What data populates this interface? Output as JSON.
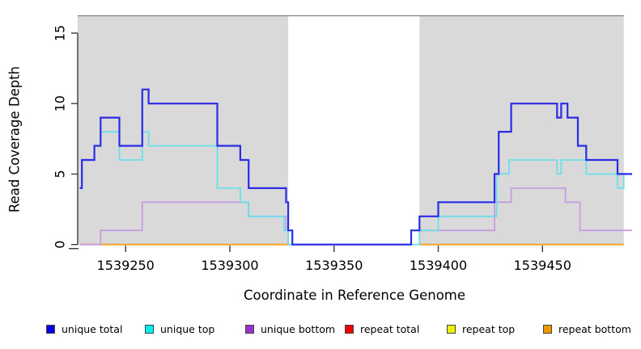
{
  "chart_data": {
    "type": "line",
    "subtype": "step-coverage-plot",
    "title": "",
    "xlabel": "Coordinate in Reference Genome",
    "ylabel": "Read Coverage Depth",
    "xlim": [
      1539227,
      1539493
    ],
    "ylim": [
      0,
      16.2
    ],
    "x_ticks": [
      1539250,
      1539300,
      1539350,
      1539400,
      1539450
    ],
    "y_ticks": [
      0,
      5,
      10,
      15
    ],
    "grid": false,
    "plot_bg_color": "#ffffff",
    "shaded_region_color": "#d9d9d9",
    "shaded_region_border_color": "#808080",
    "shaded_regions": [
      {
        "x_start": 1539227,
        "x_end": 1539328
      },
      {
        "x_start": 1539391,
        "x_end": 1539489
      }
    ],
    "legend_position": "bottom",
    "series": [
      {
        "name": "unique total",
        "line_color": "#2b2be8",
        "legend_color": "#0000ee",
        "line_width": 2.2,
        "segments": [
          {
            "end": 1539493,
            "steps": [
              [
                1539228,
                4
              ],
              [
                1539229,
                6
              ],
              [
                1539235,
                7
              ],
              [
                1539238,
                9
              ],
              [
                1539247,
                7
              ],
              [
                1539258,
                11
              ],
              [
                1539261,
                10
              ],
              [
                1539294,
                7
              ],
              [
                1539305,
                6
              ],
              [
                1539309,
                4
              ],
              [
                1539327,
                3
              ],
              [
                1539328,
                1
              ],
              [
                1539330,
                0
              ],
              [
                1539387,
                1
              ],
              [
                1539391,
                2
              ],
              [
                1539400,
                3
              ],
              [
                1539427,
                5
              ],
              [
                1539429,
                8
              ],
              [
                1539435,
                10
              ],
              [
                1539457,
                9
              ],
              [
                1539459,
                10
              ],
              [
                1539462,
                9
              ],
              [
                1539467,
                7
              ],
              [
                1539471,
                6
              ],
              [
                1539486,
                5
              ]
            ]
          }
        ]
      },
      {
        "name": "unique top",
        "line_color": "#6adfec",
        "legend_color": "#00eeee",
        "line_width": 1.8,
        "segments": [
          {
            "end": 1539493,
            "steps": [
              [
                1539228,
                4
              ],
              [
                1539229,
                6
              ],
              [
                1539235,
                7
              ],
              [
                1539238,
                8
              ],
              [
                1539247,
                6
              ],
              [
                1539258,
                8
              ],
              [
                1539261,
                7
              ],
              [
                1539294,
                4
              ],
              [
                1539305,
                3
              ],
              [
                1539309,
                2
              ],
              [
                1539326,
                1
              ],
              [
                1539328,
                0
              ],
              [
                1539391,
                1
              ],
              [
                1539400,
                2
              ],
              [
                1539428,
                5
              ],
              [
                1539434,
                6
              ],
              [
                1539457,
                5
              ],
              [
                1539459,
                6
              ],
              [
                1539471,
                5
              ],
              [
                1539486,
                4
              ],
              [
                1539489,
                5
              ]
            ]
          }
        ]
      },
      {
        "name": "unique bottom",
        "line_color": "#c69ce2",
        "legend_color": "#9932cc",
        "line_width": 1.8,
        "segments": [
          {
            "end": 1539493,
            "steps": [
              [
                1539228,
                0
              ],
              [
                1539238,
                1
              ],
              [
                1539258,
                3
              ],
              [
                1539309,
                2
              ],
              [
                1539327,
                1
              ],
              [
                1539328,
                0
              ],
              [
                1539387,
                1
              ],
              [
                1539427,
                3
              ],
              [
                1539435,
                4
              ],
              [
                1539461,
                3
              ],
              [
                1539468,
                1
              ]
            ]
          }
        ]
      },
      {
        "name": "repeat total",
        "line_color": "#ee0000",
        "legend_color": "#ee0000",
        "line_width": 1.5,
        "segments": [
          {
            "end": 1539328,
            "steps": [
              [
                1539228,
                0
              ]
            ]
          },
          {
            "end": 1539489,
            "steps": [
              [
                1539391,
                0
              ]
            ]
          }
        ]
      },
      {
        "name": "repeat top",
        "line_color": "#eeee00",
        "legend_color": "#eeee00",
        "line_width": 1.5,
        "segments": [
          {
            "end": 1539328,
            "steps": [
              [
                1539228,
                0
              ]
            ]
          },
          {
            "end": 1539489,
            "steps": [
              [
                1539391,
                0
              ]
            ]
          }
        ]
      },
      {
        "name": "repeat bottom",
        "line_color": "#ff9c1e",
        "legend_color": "#ee9900",
        "line_width": 1.8,
        "segments": [
          {
            "end": 1539328,
            "steps": [
              [
                1539228,
                0
              ]
            ]
          },
          {
            "end": 1539489,
            "steps": [
              [
                1539391,
                0
              ]
            ]
          }
        ]
      }
    ],
    "legend": [
      {
        "label": "unique total",
        "color": "#0000ee"
      },
      {
        "label": "unique top",
        "color": "#00eeee"
      },
      {
        "label": "unique bottom",
        "color": "#9932cc"
      },
      {
        "label": "repeat total",
        "color": "#ee0000"
      },
      {
        "label": "repeat top",
        "color": "#eeee00"
      },
      {
        "label": "repeat bottom",
        "color": "#ee9900"
      }
    ],
    "draw_order": [
      "repeat total",
      "repeat top",
      "repeat bottom",
      "unique bottom",
      "unique top",
      "unique total"
    ]
  },
  "axis_color": "#3c3c3c",
  "text_color": "#000000"
}
